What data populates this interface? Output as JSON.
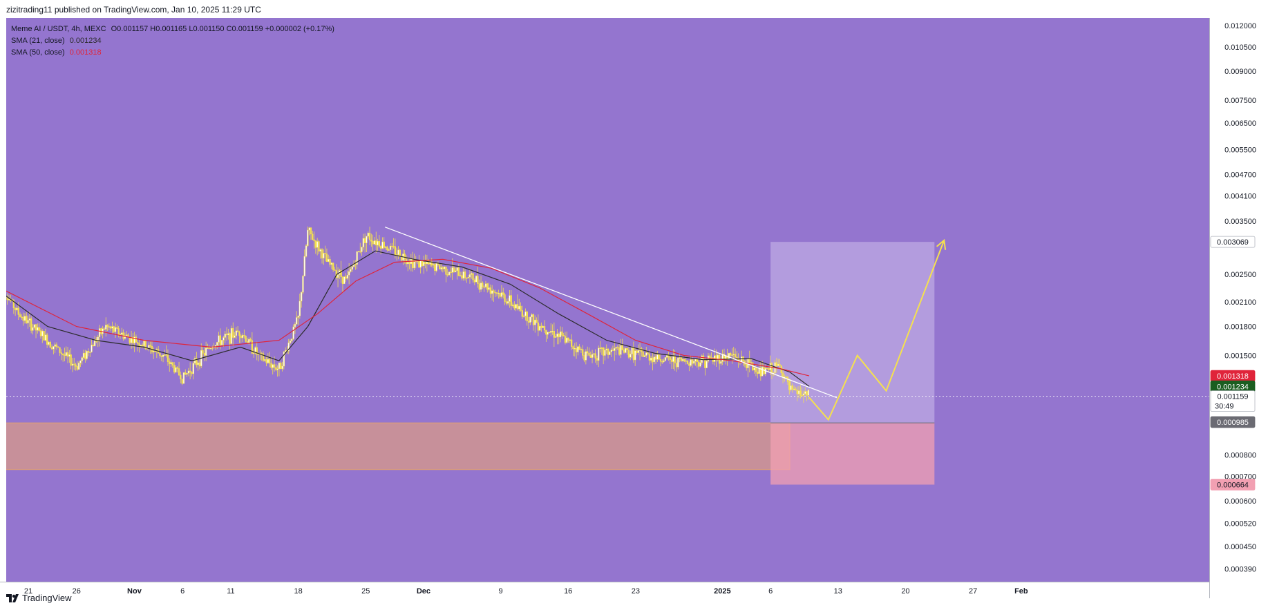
{
  "header": {
    "published_by": "zizitrading11 published on TradingView.com, Jan 10, 2025 11:29 UTC"
  },
  "legend": {
    "symbol": "Meme AI / USDT, 4h, MEXC",
    "ohlc": "O0.001157 H0.001165 L0.001150 C0.001159 +0.000002 (+0.17%)",
    "sma21_label": "SMA (21, close)",
    "sma21_value": "0.001234",
    "sma50_label": "SMA (50, close)",
    "sma50_value": "0.001318"
  },
  "footer": {
    "brand": "TradingView"
  },
  "colors": {
    "background": "#9475cf",
    "candles": "#f5e14e",
    "sma21": "#2b2b2b",
    "sma50": "#e0243a",
    "trendline": "#ffffff",
    "projection": "#f5e14e",
    "support_zone": "#dd9b83",
    "target_box": "#c8b6e8",
    "stop_box": "#f2a0b2"
  },
  "chart_data": {
    "type": "line",
    "title": "Meme AI / USDT, 4h, MEXC",
    "y_scale": "log",
    "ylim": [
      0.00036,
      0.0126
    ],
    "y_ticks": [
      "0.012000",
      "0.010500",
      "0.009000",
      "0.007500",
      "0.006500",
      "0.005500",
      "0.004700",
      "0.004100",
      "0.003500",
      "0.002500",
      "0.002100",
      "0.001800",
      "0.001500",
      "0.000800",
      "0.000700",
      "0.000600",
      "0.000520",
      "0.000450",
      "0.000390"
    ],
    "x_ticks": [
      "21",
      "26",
      "Nov",
      "6",
      "11",
      "18",
      "25",
      "Dec",
      "9",
      "16",
      "23",
      "2025",
      "6",
      "13",
      "20",
      "27",
      "Feb"
    ],
    "price_badges": [
      {
        "label": "0.003069",
        "value": 0.003069,
        "bg": "#ffffff",
        "fg": "#131722"
      },
      {
        "label": "0.001318",
        "value": 0.001318,
        "bg": "#e0243a",
        "fg": "#ffffff"
      },
      {
        "label": "0.001234",
        "value": 0.001234,
        "bg": "#1b5e20",
        "fg": "#ffffff"
      },
      {
        "label": "0.001159",
        "value": 0.001159,
        "bg": "#ffffff",
        "fg": "#131722",
        "sub": "30:49"
      },
      {
        "label": "0.000985",
        "value": 0.000985,
        "bg": "#6b6b73",
        "fg": "#ffffff"
      },
      {
        "label": "0.000664",
        "value": 0.000664,
        "bg": "#f2a0b2",
        "fg": "#131722"
      }
    ],
    "series": [
      {
        "name": "Close",
        "x": [
          "2024-10-18",
          "2024-10-20",
          "2024-10-23",
          "2024-10-26",
          "2024-10-29",
          "2024-11-01",
          "2024-11-04",
          "2024-11-06",
          "2024-11-09",
          "2024-11-12",
          "2024-11-14",
          "2024-11-16",
          "2024-11-18",
          "2024-11-19",
          "2024-11-21",
          "2024-11-23",
          "2024-11-25",
          "2024-11-27",
          "2024-11-30",
          "2024-12-03",
          "2024-12-06",
          "2024-12-09",
          "2024-12-12",
          "2024-12-15",
          "2024-12-18",
          "2024-12-21",
          "2024-12-24",
          "2024-12-27",
          "2024-12-30",
          "2025-01-02",
          "2025-01-05",
          "2025-01-07",
          "2025-01-08",
          "2025-01-10"
        ],
        "y": [
          0.00235,
          0.00195,
          0.00165,
          0.0014,
          0.0018,
          0.00165,
          0.0015,
          0.0013,
          0.0016,
          0.00175,
          0.00148,
          0.00138,
          0.0019,
          0.0033,
          0.0027,
          0.0024,
          0.0032,
          0.003,
          0.0027,
          0.0026,
          0.00245,
          0.0022,
          0.0019,
          0.0017,
          0.0015,
          0.00155,
          0.0015,
          0.00145,
          0.00145,
          0.0015,
          0.00135,
          0.0014,
          0.0012,
          0.00116
        ]
      },
      {
        "name": "SMA (21, close)",
        "x": [
          "2024-10-18",
          "2024-10-23",
          "2024-10-28",
          "2024-11-02",
          "2024-11-07",
          "2024-11-12",
          "2024-11-16",
          "2024-11-19",
          "2024-11-22",
          "2024-11-26",
          "2024-11-30",
          "2024-12-05",
          "2024-12-10",
          "2024-12-15",
          "2024-12-20",
          "2024-12-25",
          "2024-12-30",
          "2025-01-04",
          "2025-01-08",
          "2025-01-10"
        ],
        "y": [
          0.00225,
          0.0018,
          0.00165,
          0.00158,
          0.00145,
          0.00158,
          0.00145,
          0.0018,
          0.0025,
          0.0029,
          0.00275,
          0.00262,
          0.00235,
          0.00195,
          0.00165,
          0.00152,
          0.00146,
          0.00147,
          0.00135,
          0.001234
        ]
      },
      {
        "name": "SMA (50, close)",
        "x": [
          "2024-10-18",
          "2024-10-26",
          "2024-11-02",
          "2024-11-09",
          "2024-11-16",
          "2024-11-20",
          "2024-11-24",
          "2024-11-28",
          "2024-12-03",
          "2024-12-08",
          "2024-12-13",
          "2024-12-18",
          "2024-12-23",
          "2024-12-28",
          "2025-01-02",
          "2025-01-07",
          "2025-01-10"
        ],
        "y": [
          0.0023,
          0.0018,
          0.00165,
          0.00158,
          0.00165,
          0.00195,
          0.0024,
          0.0027,
          0.00275,
          0.0026,
          0.0023,
          0.00195,
          0.00165,
          0.0015,
          0.00145,
          0.00138,
          0.001318
        ]
      }
    ],
    "annotations": {
      "trendline": {
        "x": [
          "2024-11-27",
          "2025-01-10"
        ],
        "y": [
          0.00337,
          0.0012
        ]
      },
      "support_zone": {
        "x": [
          "2024-10-18",
          "2025-01-08"
        ],
        "y": [
          0.00073,
          0.00098
        ]
      },
      "target_zone": {
        "x": [
          "2025-01-06",
          "2025-01-23"
        ],
        "y": [
          0.00098,
          0.003069
        ]
      },
      "stop_zone": {
        "x": [
          "2025-01-06",
          "2025-01-23"
        ],
        "y": [
          0.000664,
          0.00098
        ]
      },
      "projection_path": {
        "x": [
          "2025-01-10",
          "2025-01-12",
          "2025-01-15",
          "2025-01-18",
          "2025-01-24"
        ],
        "y": [
          0.00115,
          0.001,
          0.0015,
          0.0012,
          0.0031
        ]
      }
    }
  }
}
